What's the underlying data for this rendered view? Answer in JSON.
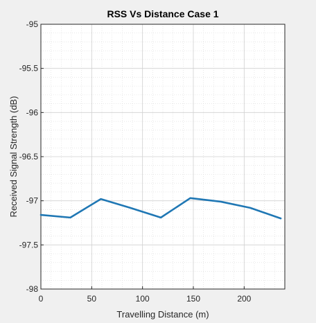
{
  "chart_data": {
    "type": "line",
    "title": "RSS Vs Distance Case 1",
    "xlabel": "Travelling Distance (m)",
    "ylabel": "Received Signal Strength (dB)",
    "xlim": [
      0,
      240
    ],
    "ylim": [
      -98,
      -95
    ],
    "x_ticks": [
      0,
      50,
      100,
      150,
      200
    ],
    "y_ticks": [
      -95,
      -95.5,
      -96,
      -96.5,
      -97,
      -97.5,
      -98
    ],
    "x_tick_labels": [
      "0",
      "50",
      "100",
      "150",
      "200"
    ],
    "y_tick_labels": [
      "-95",
      "-95.5",
      "-96",
      "-96.5",
      "-97",
      "-97.5",
      "-98"
    ],
    "grid": true,
    "minor_grid": true,
    "series": [
      {
        "color": "#1f77b4",
        "x": [
          0,
          29,
          59,
          88,
          118,
          147,
          177,
          206,
          236
        ],
        "y": [
          -97.16,
          -97.19,
          -96.98,
          -97.08,
          -97.19,
          -96.97,
          -97.01,
          -97.08,
          -97.2
        ]
      }
    ]
  }
}
